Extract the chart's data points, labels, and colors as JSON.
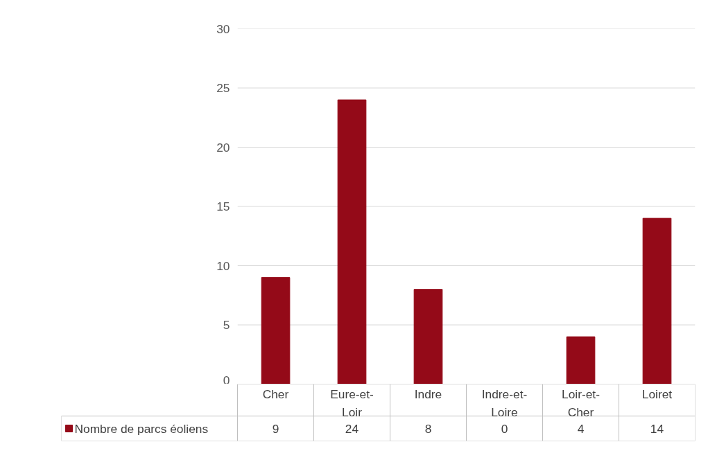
{
  "chart_data": {
    "type": "bar",
    "categories": [
      "Cher",
      "Eure-et-Loir",
      "Indre",
      "Indre-et-Loire",
      "Loir-et-Cher",
      "Loiret"
    ],
    "series": [
      {
        "name": "Nombre de parcs éoliens",
        "color": "#940a18",
        "values": [
          9,
          24,
          8,
          0,
          4,
          14
        ]
      }
    ],
    "ylim": [
      0,
      30
    ],
    "yticks": [
      0,
      5,
      10,
      15,
      20,
      25,
      30
    ],
    "grid": "y",
    "data_labels": true,
    "legend": "bottom"
  }
}
